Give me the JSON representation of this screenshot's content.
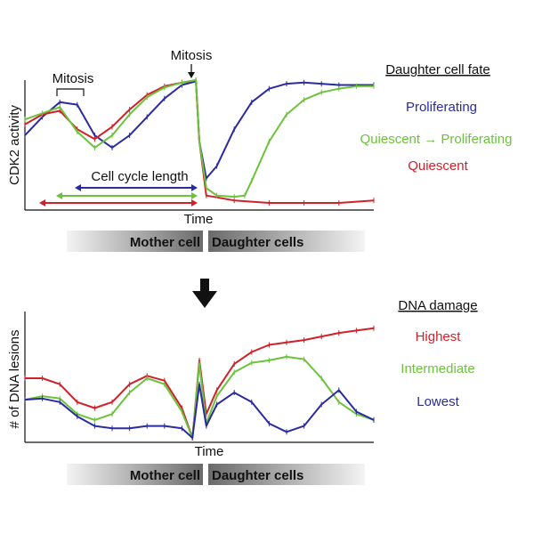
{
  "chart_data": [
    {
      "type": "line",
      "ylabel": "CDK2 activity",
      "xlabel": "Time",
      "legend_title": "Daughter cell fate",
      "annotations": {
        "mitosis_bracket": "Mitosis",
        "mitosis_arrow": "Mitosis",
        "cell_cycle_length": "Cell cycle length"
      },
      "bar_labels": [
        "Mother cell",
        "Daughter cells"
      ],
      "series": [
        {
          "name": "Proliferating",
          "color": "#2a2ba0",
          "x": [
            0,
            0.05,
            0.1,
            0.15,
            0.2,
            0.25,
            0.3,
            0.35,
            0.4,
            0.45,
            0.49,
            0.5,
            0.52,
            0.55,
            0.6,
            0.65,
            0.7,
            0.75,
            0.8,
            0.85,
            0.9,
            1
          ],
          "y": [
            0.55,
            0.7,
            0.82,
            0.8,
            0.55,
            0.45,
            0.55,
            0.7,
            0.85,
            0.96,
            0.99,
            0.5,
            0.2,
            0.3,
            0.6,
            0.82,
            0.93,
            0.97,
            0.98,
            0.97,
            0.96,
            0.96
          ]
        },
        {
          "name": "Quiescent",
          "color": "#d0202a",
          "x": [
            0,
            0.05,
            0.1,
            0.15,
            0.2,
            0.25,
            0.3,
            0.35,
            0.4,
            0.45,
            0.49,
            0.5,
            0.52,
            0.6,
            0.7,
            0.8,
            0.9,
            1
          ],
          "y": [
            0.64,
            0.72,
            0.75,
            0.6,
            0.52,
            0.62,
            0.76,
            0.88,
            0.95,
            0.98,
            1.0,
            0.5,
            0.06,
            0.02,
            0.0,
            0.0,
            0.0,
            0.02
          ]
        },
        {
          "name": "Quiescent → Proliferating",
          "color": "#6cc23b",
          "x": [
            0,
            0.05,
            0.1,
            0.15,
            0.2,
            0.25,
            0.3,
            0.35,
            0.4,
            0.45,
            0.49,
            0.5,
            0.52,
            0.55,
            0.6,
            0.63,
            0.65,
            0.7,
            0.75,
            0.8,
            0.85,
            0.9,
            0.95,
            1
          ],
          "y": [
            0.68,
            0.73,
            0.78,
            0.58,
            0.45,
            0.55,
            0.72,
            0.86,
            0.94,
            0.98,
            1.0,
            0.5,
            0.12,
            0.06,
            0.05,
            0.06,
            0.18,
            0.5,
            0.72,
            0.84,
            0.9,
            0.93,
            0.95,
            0.95
          ]
        }
      ]
    },
    {
      "type": "line",
      "ylabel": "# of DNA lesions",
      "xlabel": "Time",
      "legend_title": "DNA damage",
      "bar_labels": [
        "Mother cell",
        "Daughter cells"
      ],
      "series": [
        {
          "name": "Highest",
          "color": "#d0202a",
          "x": [
            0,
            0.05,
            0.1,
            0.15,
            0.2,
            0.25,
            0.3,
            0.35,
            0.4,
            0.45,
            0.48,
            0.5,
            0.52,
            0.55,
            0.6,
            0.65,
            0.7,
            0.75,
            0.8,
            0.85,
            0.9,
            0.95,
            1
          ],
          "y": [
            0.5,
            0.5,
            0.45,
            0.3,
            0.25,
            0.3,
            0.45,
            0.52,
            0.48,
            0.25,
            0.0,
            0.65,
            0.2,
            0.4,
            0.62,
            0.72,
            0.78,
            0.8,
            0.82,
            0.85,
            0.88,
            0.9,
            0.92
          ]
        },
        {
          "name": "Intermediate",
          "color": "#6cc23b",
          "x": [
            0,
            0.05,
            0.1,
            0.15,
            0.2,
            0.25,
            0.3,
            0.35,
            0.4,
            0.45,
            0.48,
            0.5,
            0.52,
            0.55,
            0.6,
            0.65,
            0.7,
            0.75,
            0.8,
            0.85,
            0.9,
            0.95,
            1
          ],
          "y": [
            0.32,
            0.35,
            0.33,
            0.2,
            0.15,
            0.2,
            0.38,
            0.5,
            0.45,
            0.22,
            0.0,
            0.62,
            0.12,
            0.35,
            0.55,
            0.63,
            0.65,
            0.68,
            0.66,
            0.5,
            0.3,
            0.2,
            0.15
          ]
        },
        {
          "name": "Lowest",
          "color": "#2a2ba0",
          "x": [
            0,
            0.05,
            0.1,
            0.15,
            0.2,
            0.25,
            0.3,
            0.35,
            0.4,
            0.45,
            0.48,
            0.5,
            0.52,
            0.55,
            0.6,
            0.65,
            0.7,
            0.75,
            0.8,
            0.85,
            0.9,
            0.95,
            1
          ],
          "y": [
            0.32,
            0.33,
            0.3,
            0.18,
            0.1,
            0.08,
            0.08,
            0.1,
            0.1,
            0.08,
            0.0,
            0.45,
            0.1,
            0.28,
            0.38,
            0.3,
            0.12,
            0.05,
            0.1,
            0.28,
            0.4,
            0.22,
            0.15
          ]
        }
      ]
    }
  ],
  "arrow_icon": "down-arrow-icon"
}
